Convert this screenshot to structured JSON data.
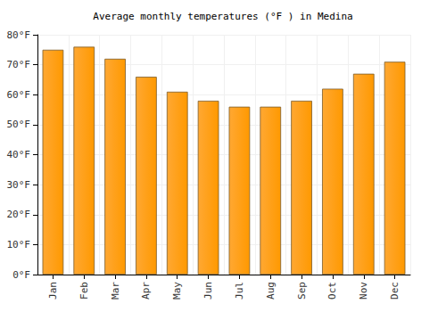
{
  "chart_data": {
    "type": "bar",
    "title": "Average monthly temperatures (°F ) in Medina",
    "categories": [
      "Jan",
      "Feb",
      "Mar",
      "Apr",
      "May",
      "Jun",
      "Jul",
      "Aug",
      "Sep",
      "Oct",
      "Nov",
      "Dec"
    ],
    "values": [
      75,
      76,
      72,
      66,
      61,
      58,
      56,
      56,
      58,
      62,
      67,
      71
    ],
    "color": "#ffa833",
    "ylim": [
      0,
      80
    ],
    "yticks": [
      {
        "value": 0,
        "label": "0°F"
      },
      {
        "value": 10,
        "label": "10°F"
      },
      {
        "value": 20,
        "label": "20°F"
      },
      {
        "value": 30,
        "label": "30°F"
      },
      {
        "value": 40,
        "label": "40°F"
      },
      {
        "value": 50,
        "label": "50°F"
      },
      {
        "value": 60,
        "label": "60°F"
      },
      {
        "value": 70,
        "label": "70°F"
      },
      {
        "value": 80,
        "label": "80°F"
      }
    ],
    "grid": true
  }
}
